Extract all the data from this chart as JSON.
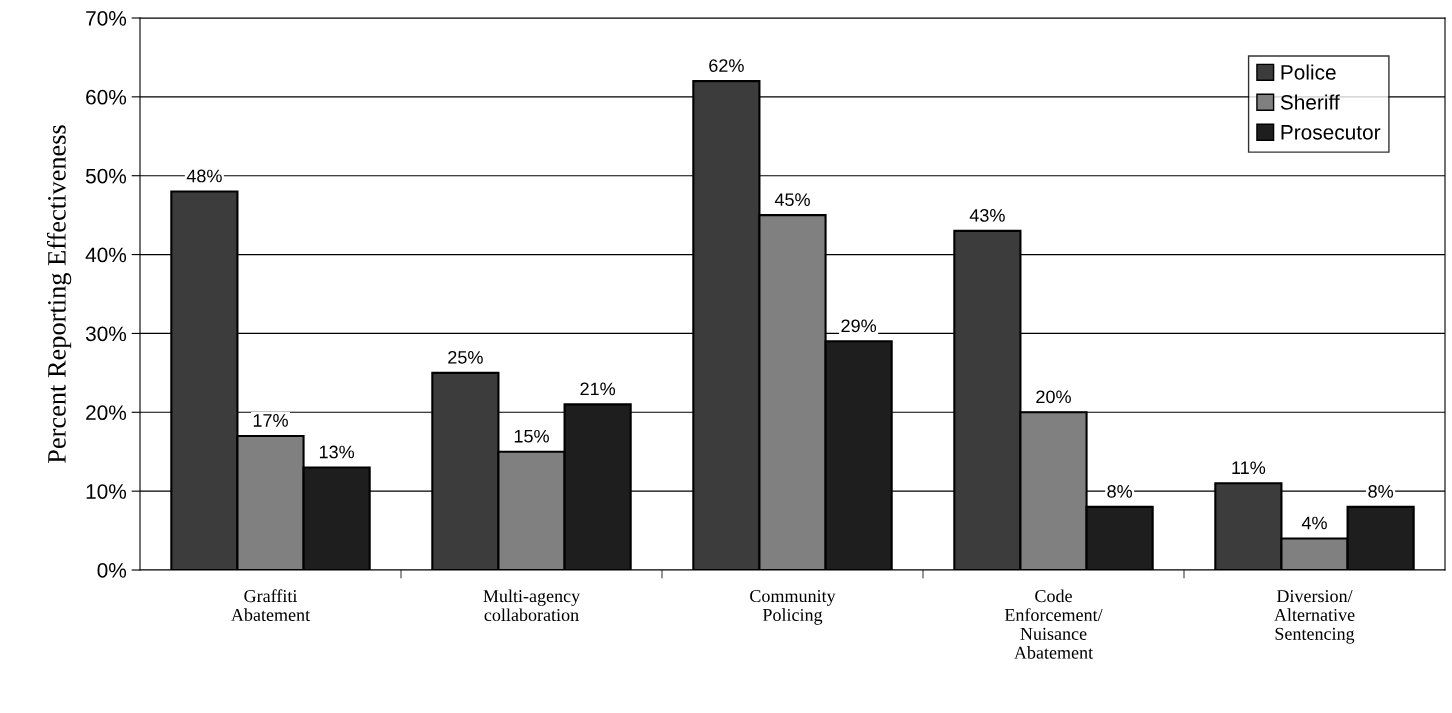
{
  "chart_data": {
    "type": "bar",
    "ylabel": "Percent Reporting Effectiveness",
    "categories": [
      "Graffiti\nAbatement",
      "Multi-agency\ncollaboration",
      "Community\nPolicing",
      "Code\nEnforcement/\nNuisance\nAbatement",
      "Diversion/\nAlternative\nSentencing"
    ],
    "series": [
      {
        "name": "Police",
        "color": "#3c3c3c",
        "values": [
          48,
          25,
          62,
          43,
          11
        ],
        "value_labels": [
          "48%",
          "25%",
          "62%",
          "43%",
          "11%"
        ]
      },
      {
        "name": "Sheriff",
        "color": "#808080",
        "values": [
          17,
          15,
          45,
          20,
          4
        ],
        "value_labels": [
          "17%",
          "15%",
          "45%",
          "20%",
          "4%"
        ]
      },
      {
        "name": "Prosecutor",
        "color": "#1e1e1e",
        "values": [
          13,
          21,
          29,
          8,
          8
        ],
        "value_labels": [
          "13%",
          "21%",
          "29%",
          "8%",
          "8%"
        ]
      }
    ],
    "ylim": [
      0,
      70
    ],
    "yticks": [
      {
        "value": 0,
        "label": "0%"
      },
      {
        "value": 10,
        "label": "10%"
      },
      {
        "value": 20,
        "label": "20%"
      },
      {
        "value": 30,
        "label": "30%"
      },
      {
        "value": 40,
        "label": "40%"
      },
      {
        "value": 50,
        "label": "50%"
      },
      {
        "value": 60,
        "label": "60%"
      },
      {
        "value": 70,
        "label": "70%"
      }
    ],
    "grid": "y",
    "legend": "top right"
  }
}
